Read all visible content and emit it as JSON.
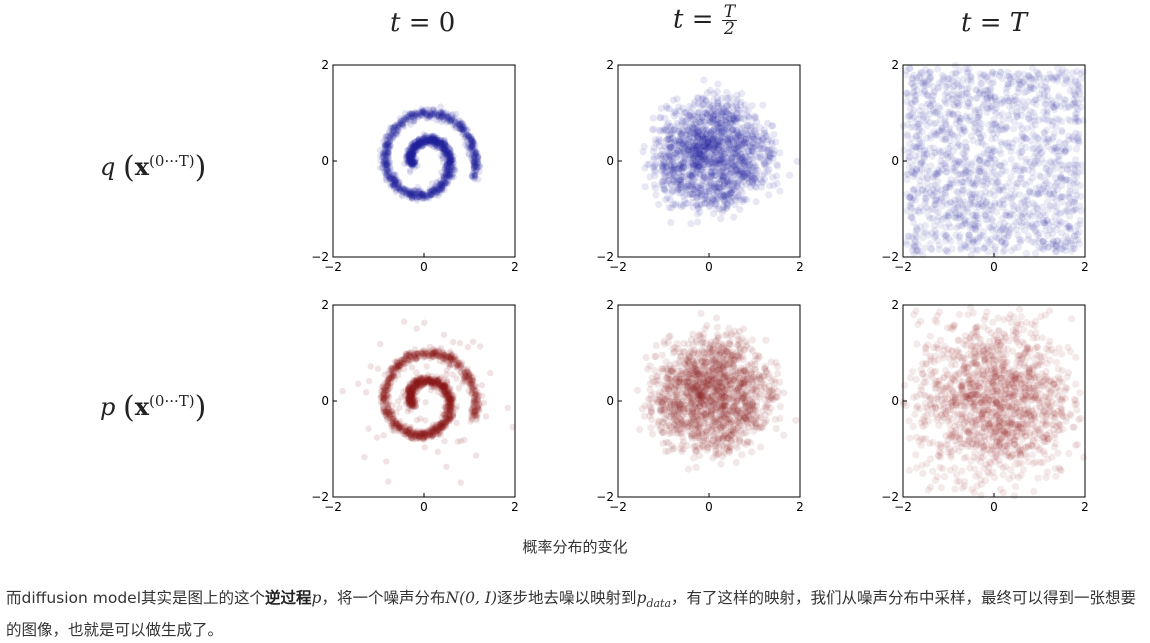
{
  "columns": [
    {
      "prefix": "t = ",
      "value": "0",
      "fraction": null
    },
    {
      "prefix": "t = ",
      "value": "",
      "fraction": {
        "num": "T",
        "den": "2"
      }
    },
    {
      "prefix": "t = ",
      "value": "T",
      "fraction": null
    }
  ],
  "rows": [
    {
      "var": "q",
      "bold": "x",
      "sup": "(0···T)"
    },
    {
      "var": "p",
      "bold": "x",
      "sup": "(0···T)"
    }
  ],
  "colors": {
    "forward": "#1f1f9a",
    "reverse": "#8b1a1a"
  },
  "ticks": {
    "x": [
      "−2",
      "0",
      "2"
    ],
    "y": [
      "2",
      "0",
      "−2"
    ]
  },
  "chart_data": [
    {
      "type": "scatter",
      "row": "q",
      "t": "0",
      "distribution": "swiss roll spiral, tight",
      "xlim": [
        -2,
        2
      ],
      "ylim": [
        -2,
        2
      ],
      "noise": 0.05
    },
    {
      "type": "scatter",
      "row": "q",
      "t": "T/2",
      "distribution": "noisy spiral",
      "xlim": [
        -2,
        2
      ],
      "ylim": [
        -2,
        2
      ],
      "noise": 0.25
    },
    {
      "type": "scatter",
      "row": "q",
      "t": "T",
      "distribution": "isotropic gaussian",
      "xlim": [
        -2,
        2
      ],
      "ylim": [
        -2,
        2
      ],
      "noise": 1.0
    },
    {
      "type": "scatter",
      "row": "p",
      "t": "0",
      "distribution": "swiss roll spiral, tight",
      "xlim": [
        -2,
        2
      ],
      "ylim": [
        -2,
        2
      ],
      "noise": 0.05
    },
    {
      "type": "scatter",
      "row": "p",
      "t": "T/2",
      "distribution": "noisy spiral",
      "xlim": [
        -2,
        2
      ],
      "ylim": [
        -2,
        2
      ],
      "noise": 0.3
    },
    {
      "type": "scatter",
      "row": "p",
      "t": "T",
      "distribution": "isotropic gaussian",
      "xlim": [
        -2,
        2
      ],
      "ylim": [
        -2,
        2
      ],
      "noise": 1.0
    }
  ],
  "caption": "概率分布的变化",
  "paragraph": {
    "t1": "而diffusion model其实是图上的这个",
    "bold": "逆过程",
    "m1": "p",
    "t2": "，将一个噪声分布",
    "m2": "N(0, I)",
    "t3": "逐步地去噪以映射到",
    "m3": "p",
    "m3sub": "data",
    "t4": "，有了这样的映射，我们从噪声分布中采样，最终可以得到一张想要的图像，也就是可以做生成了。"
  }
}
